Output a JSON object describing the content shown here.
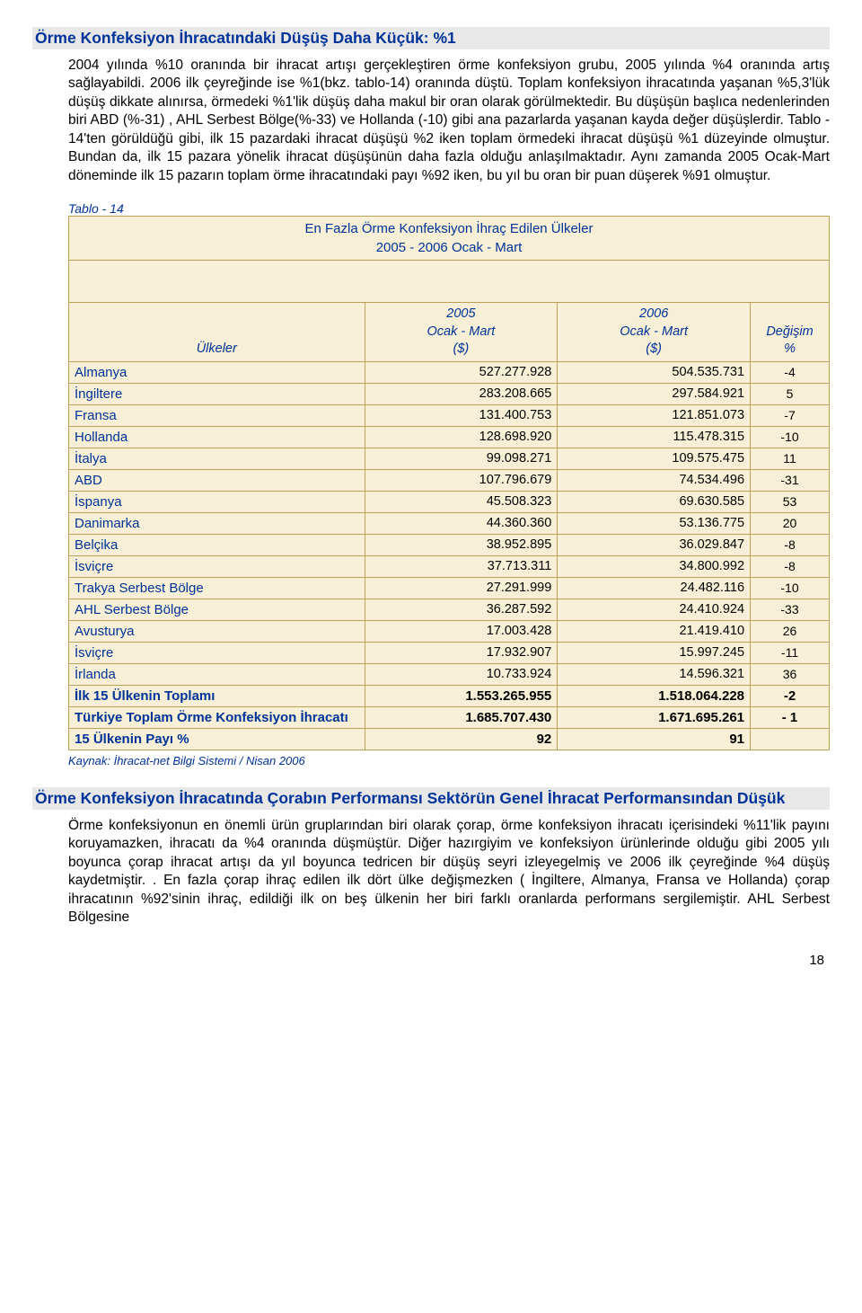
{
  "heading1": "Örme Konfeksiyon İhracatındaki Düşüş Daha Küçük: %1",
  "para1": "2004 yılında %10 oranında bir ihracat artışı gerçekleştiren örme konfeksiyon grubu, 2005 yılında %4 oranında artış sağlayabildi. 2006 ilk çeyreğinde ise %1(bkz. tablo-14) oranında düştü. Toplam konfeksiyon ihracatında yaşanan %5,3'lük düşüş dikkate alınırsa, örmedeki %1'lik düşüş daha makul bir oran olarak görülmektedir. Bu düşüşün başlıca nedenlerinden biri ABD (%-31) , AHL Serbest Bölge(%-33) ve Hollanda (-10) gibi ana pazarlarda yaşanan kayda değer düşüşlerdir. Tablo - 14'ten görüldüğü gibi, ilk 15 pazardaki ihracat düşüşü %2 iken toplam örmedeki ihracat düşüşü %1 düzeyinde olmuştur. Bundan da, ilk 15 pazara yönelik ihracat düşüşünün daha fazla olduğu anlaşılmaktadır. Aynı zamanda 2005 Ocak-Mart döneminde ilk 15 pazarın toplam örme ihracatındaki payı %92 iken, bu yıl bu oran bir puan düşerek %91 olmuştur.",
  "table": {
    "label": "Tablo - 14",
    "title_line1": "En Fazla Örme Konfeksiyon İhraç Edilen Ülkeler",
    "title_line2": "2005 - 2006 Ocak - Mart",
    "col_country": "Ülkeler",
    "col_2005_l1": "2005",
    "col_2005_l2": "Ocak - Mart",
    "col_2005_l3": "($)",
    "col_2006_l1": "2006",
    "col_2006_l2": "Ocak - Mart",
    "col_2006_l3": "($)",
    "col_pct_l1": "Değişim",
    "col_pct_l2": "%",
    "rows": [
      {
        "c": "Almanya",
        "a": "527.277.928",
        "b": "504.535.731",
        "p": "-4"
      },
      {
        "c": "İngiltere",
        "a": "283.208.665",
        "b": "297.584.921",
        "p": "5"
      },
      {
        "c": "Fransa",
        "a": "131.400.753",
        "b": "121.851.073",
        "p": "-7"
      },
      {
        "c": "Hollanda",
        "a": "128.698.920",
        "b": "115.478.315",
        "p": "-10"
      },
      {
        "c": "İtalya",
        "a": "99.098.271",
        "b": "109.575.475",
        "p": "11"
      },
      {
        "c": "ABD",
        "a": "107.796.679",
        "b": "74.534.496",
        "p": "-31"
      },
      {
        "c": "İspanya",
        "a": "45.508.323",
        "b": "69.630.585",
        "p": "53"
      },
      {
        "c": "Danimarka",
        "a": "44.360.360",
        "b": "53.136.775",
        "p": "20"
      },
      {
        "c": "Belçika",
        "a": "38.952.895",
        "b": "36.029.847",
        "p": "-8"
      },
      {
        "c": "İsviçre",
        "a": "37.713.311",
        "b": "34.800.992",
        "p": "-8"
      },
      {
        "c": "Trakya Serbest Bölge",
        "a": "27.291.999",
        "b": "24.482.116",
        "p": "-10"
      },
      {
        "c": "AHL Serbest Bölge",
        "a": "36.287.592",
        "b": "24.410.924",
        "p": "-33"
      },
      {
        "c": "Avusturya",
        "a": "17.003.428",
        "b": "21.419.410",
        "p": "26"
      },
      {
        "c": "İsviçre",
        "a": "17.932.907",
        "b": "15.997.245",
        "p": "-11"
      },
      {
        "c": "İrlanda",
        "a": "10.733.924",
        "b": "14.596.321",
        "p": "36"
      }
    ],
    "totals": [
      {
        "c": "İlk 15 Ülkenin Toplamı",
        "a": "1.553.265.955",
        "b": "1.518.064.228",
        "p": "-2"
      },
      {
        "c": "Türkiye Toplam Örme Konfeksiyon İhracatı",
        "a": "1.685.707.430",
        "b": "1.671.695.261",
        "p": "-     1"
      },
      {
        "c": "15 Ülkenin Payı %",
        "a": "92",
        "b": "91",
        "p": ""
      }
    ],
    "source": "Kaynak: İhracat-net Bilgi Sistemi / Nisan 2006"
  },
  "heading2": "Örme Konfeksiyon İhracatında Çorabın  Performansı Sektörün Genel İhracat Performansından Düşük",
  "para2": "Örme konfeksiyonun en önemli ürün gruplarından biri olarak çorap, örme konfeksiyon ihracatı içerisindeki %11'lik payını koruyamazken, ihracatı da %4 oranında düşmüştür. Diğer hazırgiyim ve konfeksiyon ürünlerinde olduğu gibi 2005 yılı boyunca çorap ihracat artışı da yıl boyunca tedricen bir düşüş seyri izleyegelmiş ve 2006 ilk çeyreğinde %4 düşüş kaydetmiştir. .   En fazla çorap ihraç edilen ilk dört ülke değişmezken ( İngiltere, Almanya, Fransa ve Hollanda) çorap ihracatının %92'sinin ihraç, edildiği ilk on beş ülkenin her biri farklı oranlarda performans sergilemiştir. AHL Serbest Bölgesine",
  "page_number": "18"
}
